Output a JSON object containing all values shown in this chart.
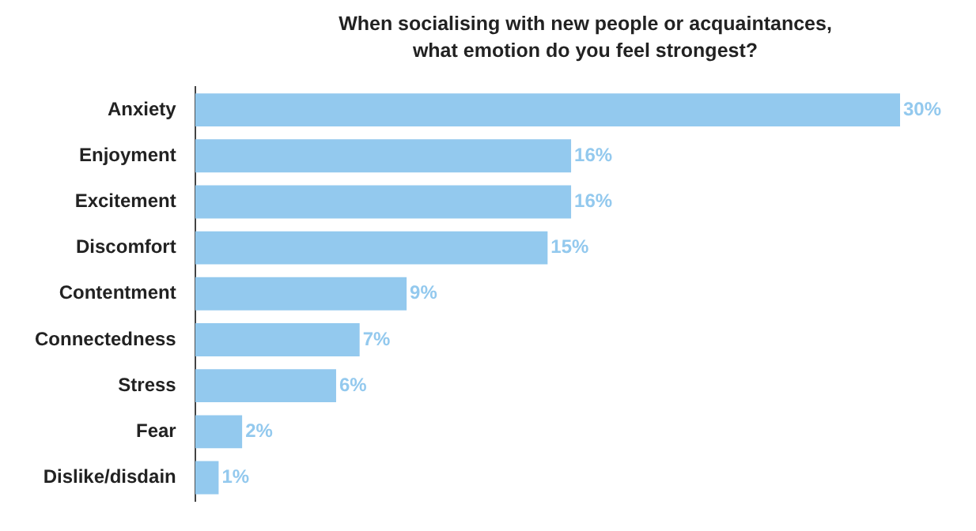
{
  "chart_data": {
    "type": "bar",
    "orientation": "horizontal",
    "title": "When socialising with new people or acquaintances, what emotion do you feel strongest?",
    "categories": [
      "Anxiety",
      "Enjoyment",
      "Excitement",
      "Discomfort",
      "Contentment",
      "Connectedness",
      "Stress",
      "Fear",
      "Dislike/disdain"
    ],
    "values": [
      30,
      16,
      16,
      15,
      9,
      7,
      6,
      2,
      1
    ],
    "value_labels": [
      "30%",
      "16%",
      "16%",
      "15%",
      "9%",
      "7%",
      "6%",
      "2%",
      "1%"
    ],
    "color": "#93c9ee",
    "legend": false,
    "tick_labels": "y"
  }
}
